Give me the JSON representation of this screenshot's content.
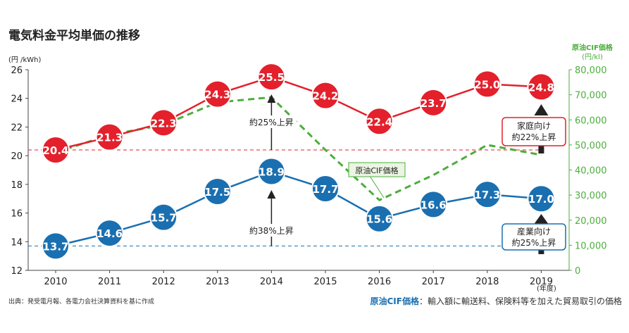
{
  "title": "電気料金平均単価の推移",
  "source": "出典：発受電月報、各電力会社決算資料を基に作成",
  "footnote": {
    "label": "原油CIF価格",
    "text": "：輸入額に輸送料、保険料等を加えた貿易取引の価格"
  },
  "chart_data": {
    "type": "line",
    "x_unit_label": "(年度)",
    "categories": [
      "2010",
      "2011",
      "2012",
      "2013",
      "2014",
      "2015",
      "2016",
      "2017",
      "2018",
      "2019"
    ],
    "y_left": {
      "unit_label": "(円 /kWh)",
      "range": [
        12,
        26
      ],
      "ticks": [
        "12",
        "14",
        "16",
        "18",
        "20",
        "22",
        "24",
        "26"
      ]
    },
    "y_right": {
      "title": "原油CIF価格",
      "unit_label": "(円/kl)",
      "range": [
        0,
        80000
      ],
      "ticks": [
        "0",
        "10,000",
        "20,000",
        "30,000",
        "40,000",
        "50,000",
        "60,000",
        "70,000",
        "80,000"
      ]
    },
    "series": [
      {
        "name": "家庭向け",
        "axis": "left",
        "color": "#e3202b",
        "values": [
          20.4,
          21.3,
          22.3,
          24.3,
          25.5,
          24.2,
          22.4,
          23.7,
          25.0,
          24.8
        ],
        "labels": [
          "20.4",
          "21.3",
          "22.3",
          "24.3",
          "25.5",
          "24.2",
          "22.4",
          "23.7",
          "25.0",
          "24.8"
        ]
      },
      {
        "name": "産業向け",
        "axis": "left",
        "color": "#1a6fb0",
        "values": [
          13.7,
          14.6,
          15.7,
          17.5,
          18.9,
          17.7,
          15.6,
          16.6,
          17.3,
          17.0
        ],
        "labels": [
          "13.7",
          "14.6",
          "15.7",
          "17.5",
          "18.9",
          "17.7",
          "15.6",
          "16.6",
          "17.3",
          "17.0"
        ]
      },
      {
        "name": "原油CIF価格",
        "axis": "right",
        "color": "#4cae3c",
        "style": "dashed",
        "values": [
          47000,
          54000,
          58000,
          67000,
          69000,
          48000,
          28000,
          38000,
          50000,
          46000
        ]
      }
    ],
    "reference_lines": [
      {
        "series": "家庭向け",
        "value": 20.4,
        "color": "#e3202b"
      },
      {
        "series": "産業向け",
        "value": 13.7,
        "color": "#1a6fb0"
      }
    ],
    "annotations": {
      "increase_2014_residential": "約25%上昇",
      "increase_2014_industrial": "約38%上昇",
      "cif_legend": "原油CIF価格",
      "residential_box": [
        "家庭向け",
        "約22%上昇"
      ],
      "industrial_box": [
        "産業向け",
        "約25%上昇"
      ]
    }
  }
}
